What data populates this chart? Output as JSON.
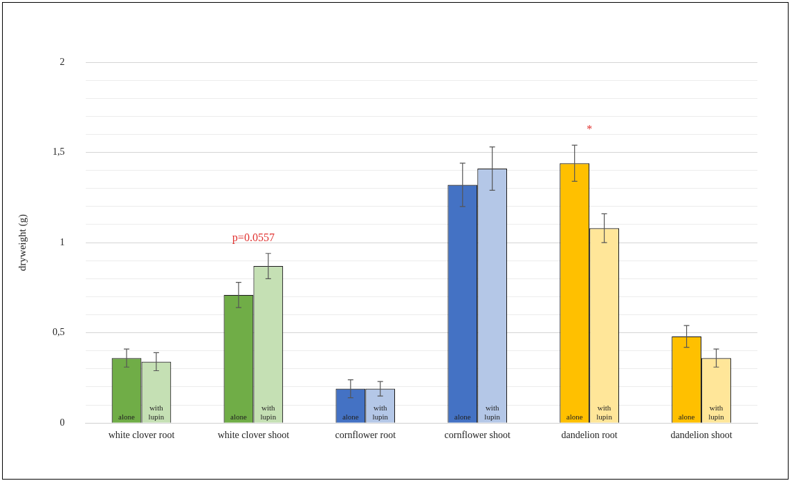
{
  "chart_data": {
    "type": "bar",
    "ylabel": "dryweight (g)",
    "categories": [
      "white clover root",
      "white clover shoot",
      "cornflower root",
      "cornflower shoot",
      "dandelion root",
      "dandelion shoot"
    ],
    "series": [
      {
        "name": "alone",
        "colors": [
          "#70ad47",
          "#70ad47",
          "#4472c4",
          "#4472c4",
          "#ffc000",
          "#ffc000"
        ],
        "values": [
          0.36,
          0.71,
          0.19,
          1.32,
          1.44,
          0.48
        ],
        "errors": [
          0.05,
          0.07,
          0.05,
          0.12,
          0.1,
          0.06
        ]
      },
      {
        "name": "with lupin",
        "colors": [
          "#c5e0b4",
          "#c5e0b4",
          "#b4c7e7",
          "#b4c7e7",
          "#ffe699",
          "#ffe699"
        ],
        "values": [
          0.34,
          0.87,
          0.19,
          1.41,
          1.08,
          0.36
        ],
        "errors": [
          0.05,
          0.07,
          0.04,
          0.12,
          0.08,
          0.05
        ]
      }
    ],
    "ylim": [
      0,
      2
    ],
    "yticks": [
      0,
      {
        "value": 0.1,
        "label": null
      },
      {
        "value": 0.2,
        "label": null
      },
      {
        "value": 0.3,
        "label": null
      },
      {
        "value": 0.4,
        "label": null
      },
      {
        "value": 0.5,
        "label": "0,5"
      },
      {
        "value": 0.6,
        "label": null
      },
      {
        "value": 0.7,
        "label": null
      },
      {
        "value": 0.8,
        "label": null
      },
      {
        "value": 0.9,
        "label": null
      },
      1,
      {
        "value": 1.1,
        "label": null
      },
      {
        "value": 1.2,
        "label": null
      },
      {
        "value": 1.3,
        "label": null
      },
      {
        "value": 1.4,
        "label": null
      },
      {
        "value": 1.5,
        "label": "1,5"
      },
      {
        "value": 1.6,
        "label": null
      },
      {
        "value": 1.7,
        "label": null
      },
      {
        "value": 1.8,
        "label": null
      },
      {
        "value": 1.9,
        "label": null
      },
      2
    ],
    "grid": "y",
    "legend": false,
    "annotations": [
      "p=0.0557",
      "*"
    ]
  }
}
